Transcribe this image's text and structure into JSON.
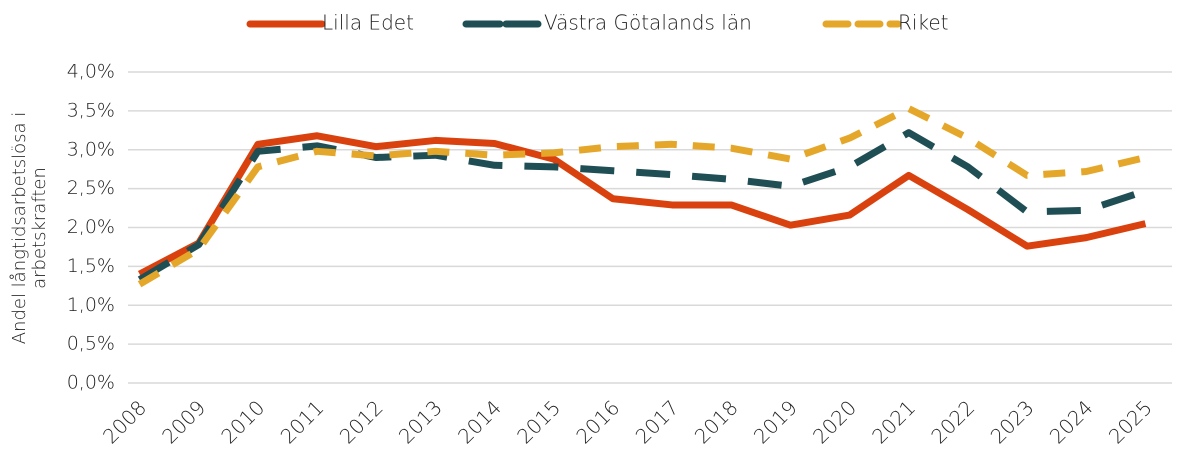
{
  "chart_data": {
    "type": "line",
    "ylabel": [
      "Andel långtidsarbetslösa i",
      "arbetskraften"
    ],
    "categories": [
      "2008",
      "2009",
      "2010",
      "2011",
      "2012",
      "2013",
      "2014",
      "2015",
      "2016",
      "2017",
      "2018",
      "2019",
      "2020",
      "2021",
      "2022",
      "2023",
      "2024",
      "2025"
    ],
    "series": [
      {
        "name": "Lilla Edet",
        "color": "#d9420e",
        "style": "solid",
        "values": [
          1.4,
          1.8,
          3.07,
          3.18,
          3.04,
          3.12,
          3.08,
          2.88,
          2.37,
          2.29,
          2.29,
          2.03,
          2.16,
          2.67,
          2.23,
          1.76,
          1.87,
          2.05
        ]
      },
      {
        "name": "Västra Götalands län",
        "color": "#1f4e55",
        "style": "long-dash",
        "values": [
          1.33,
          1.78,
          2.98,
          3.05,
          2.9,
          2.93,
          2.8,
          2.78,
          2.73,
          2.68,
          2.62,
          2.53,
          2.78,
          3.22,
          2.78,
          2.2,
          2.22,
          2.47
        ]
      },
      {
        "name": "Riket",
        "color": "#e5a72a",
        "style": "dash",
        "values": [
          1.27,
          1.72,
          2.78,
          2.98,
          2.92,
          2.98,
          2.93,
          2.96,
          3.04,
          3.07,
          3.02,
          2.88,
          3.15,
          3.53,
          3.15,
          2.67,
          2.72,
          2.9
        ]
      }
    ],
    "ylim": [
      0,
      4
    ],
    "yticks": [
      {
        "value": 0,
        "label": "0,0%"
      },
      {
        "value": 0.5,
        "label": "0,5%"
      },
      {
        "value": 1,
        "label": "1,0%"
      },
      {
        "value": 1.5,
        "label": "1,5%"
      },
      {
        "value": 2,
        "label": "2,0%"
      },
      {
        "value": 2.5,
        "label": "2,5%"
      },
      {
        "value": 3,
        "label": "3,0%"
      },
      {
        "value": 3.5,
        "label": "3,5%"
      },
      {
        "value": 4,
        "label": "4,0%"
      }
    ],
    "grid": true,
    "legend": "top"
  }
}
